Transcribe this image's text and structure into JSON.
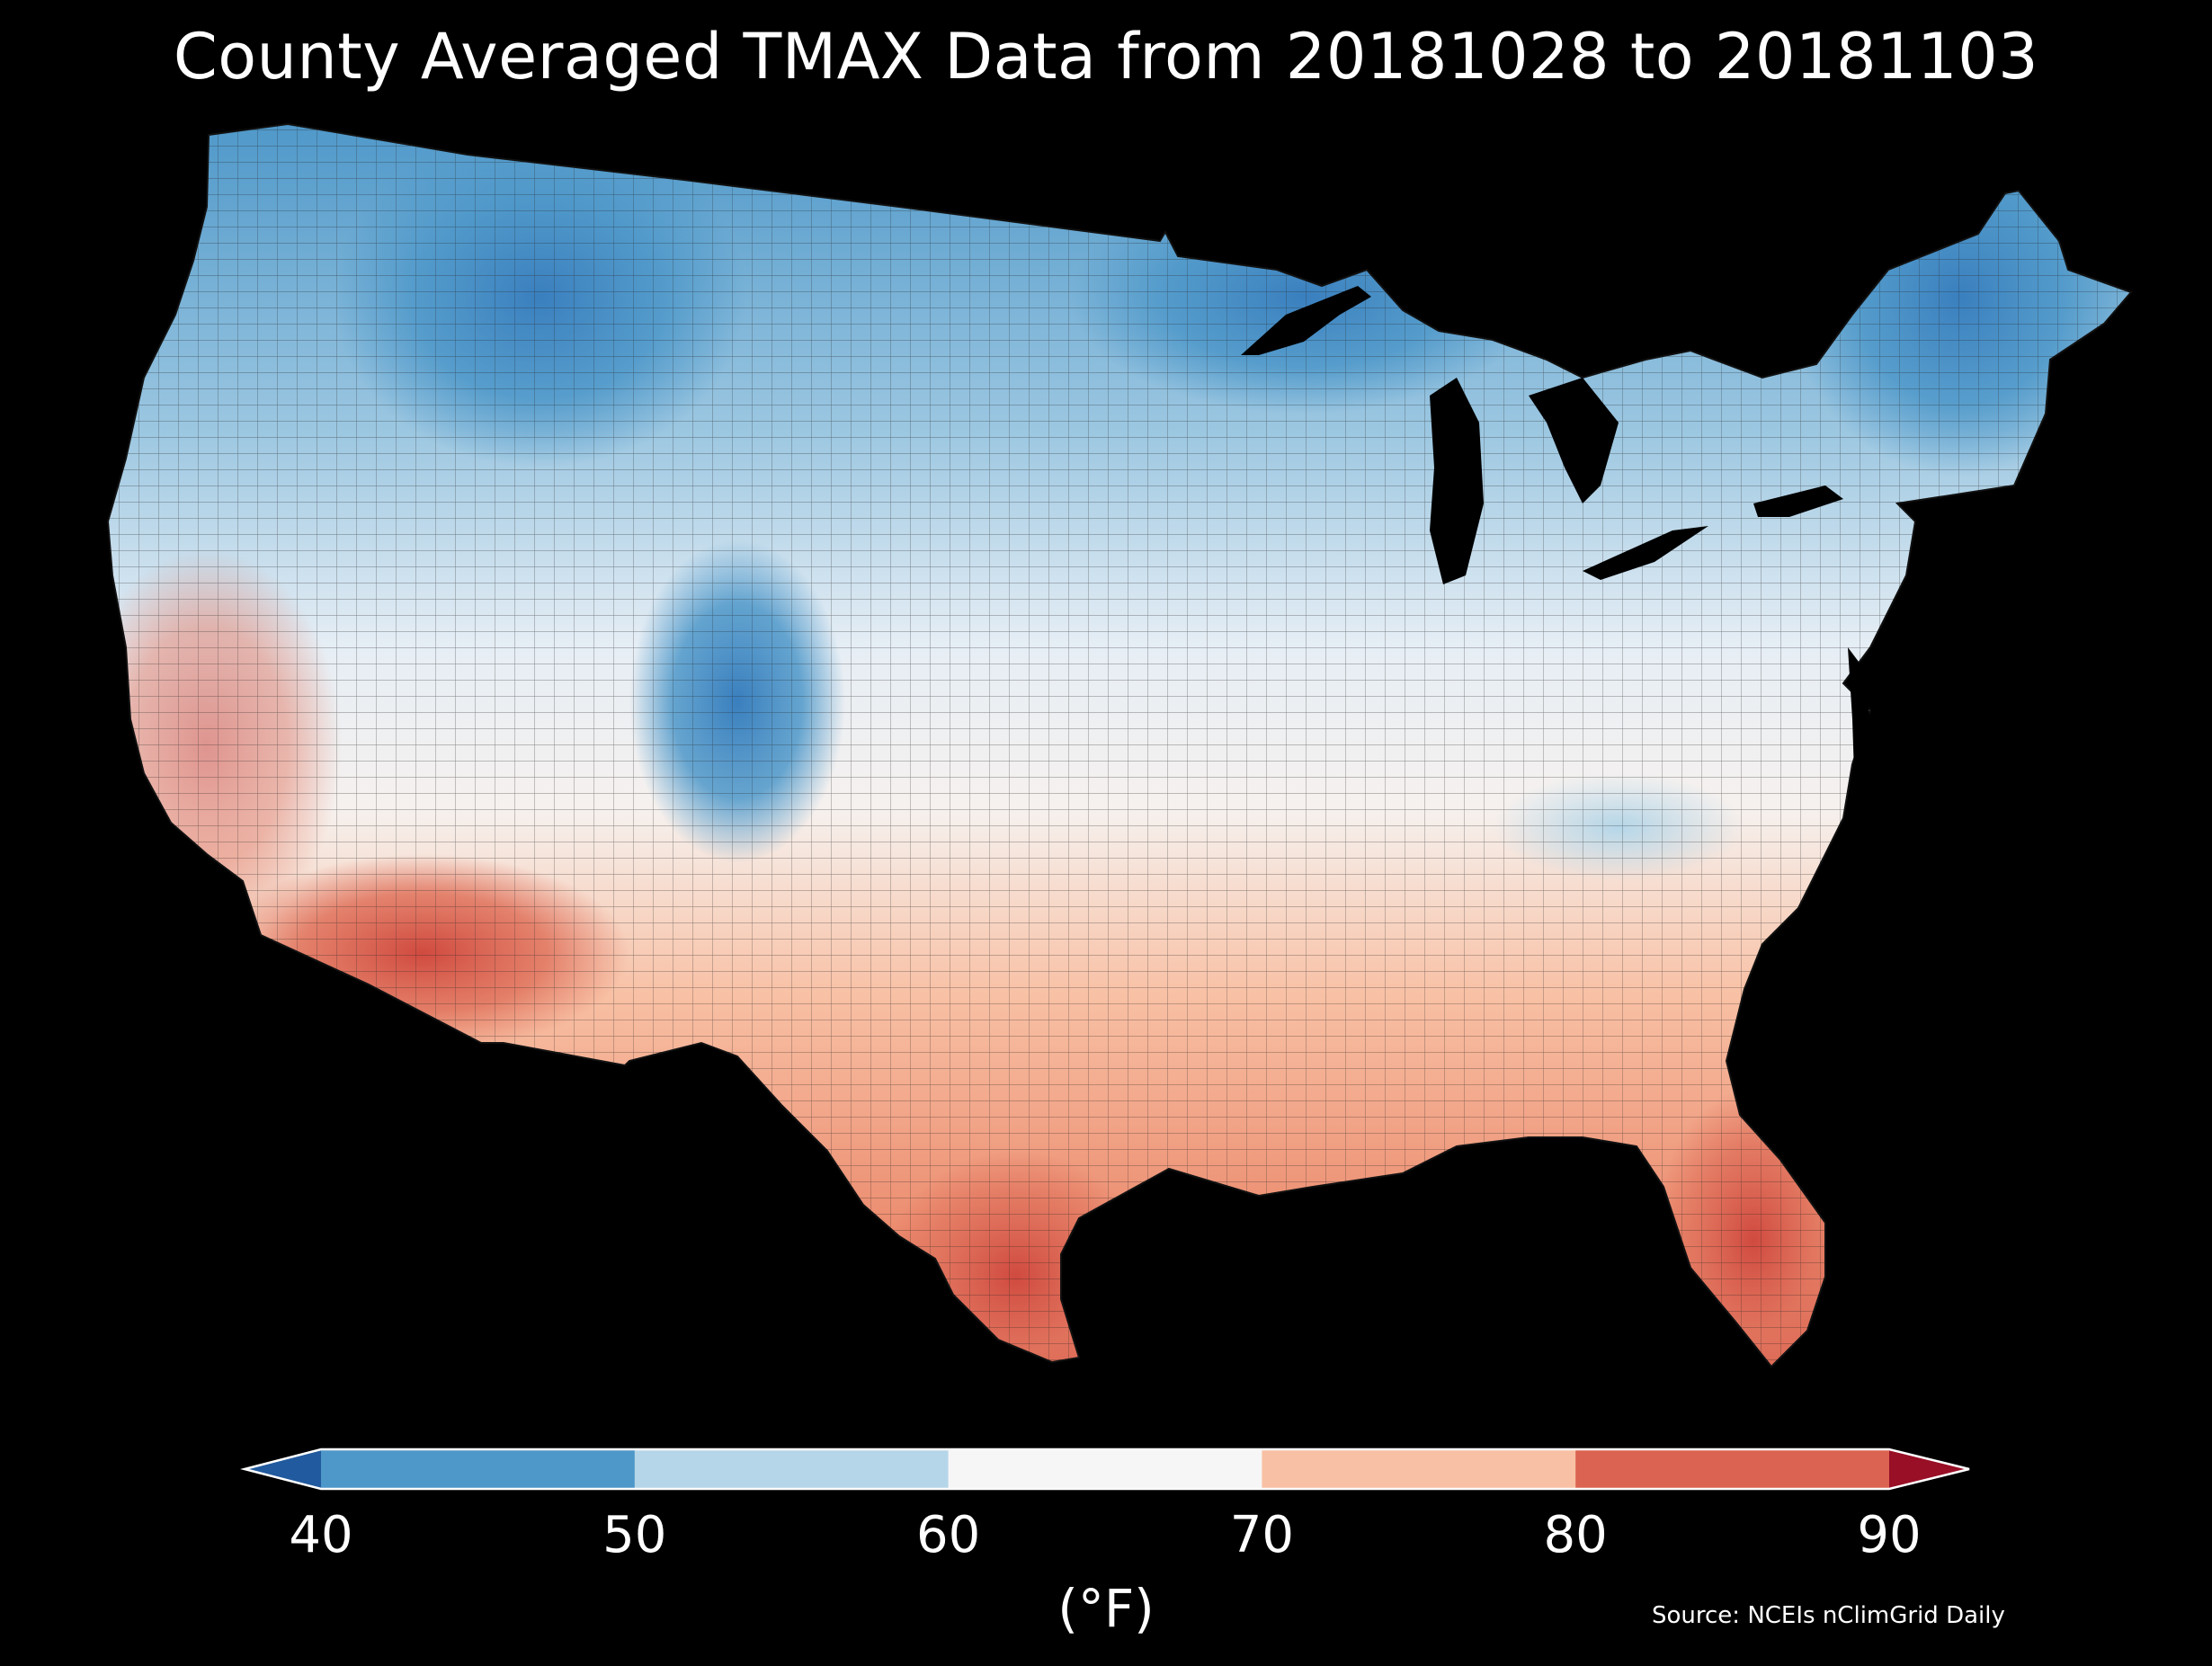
{
  "title": "County Averaged TMAX Data from 20181028 to 20181103",
  "colorbar": {
    "unit": "(°F)",
    "ticks": [
      "40",
      "50",
      "60",
      "70",
      "80",
      "90"
    ],
    "bins": [
      {
        "range": "<40",
        "color": "#215a9e"
      },
      {
        "range": "40-50",
        "color": "#4d97c9"
      },
      {
        "range": "50-60",
        "color": "#b5d6e8"
      },
      {
        "range": "60-70",
        "color": "#f6f6f6"
      },
      {
        "range": "70-80",
        "color": "#f8c0a4"
      },
      {
        "range": "80-90",
        "color": "#db6351"
      },
      {
        "range": ">90",
        "color": "#980f26"
      }
    ]
  },
  "source": "Source: NCEIs nClimGrid Daily",
  "map": {
    "region": "Contiguous United States",
    "regions": [
      {
        "name": "Northern Rockies / Montana",
        "bin": "<40 to 40-50"
      },
      {
        "name": "Colorado Rockies",
        "bin": "40-50"
      },
      {
        "name": "Maine / New England interior",
        "bin": "40-50"
      },
      {
        "name": "Upper Midwest / Michigan",
        "bin": "40-50"
      },
      {
        "name": "Pacific Northwest / Great Basin",
        "bin": "50-60"
      },
      {
        "name": "Central Plains / Ohio Valley",
        "bin": "50-60 to 60-70"
      },
      {
        "name": "California coast / Southwest",
        "bin": "70-80 to 80-90"
      },
      {
        "name": "Gulf Coast / South Texas / Florida",
        "bin": "70-80 to 80-90"
      }
    ]
  }
}
